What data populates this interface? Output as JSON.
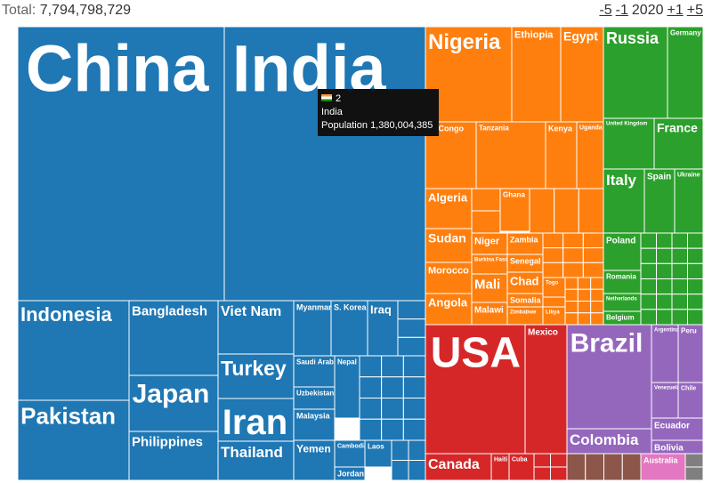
{
  "header": {
    "total_label": "Total:",
    "total": "7,794,798,729",
    "nav": [
      "-5",
      "-1",
      "2020",
      "+1",
      "+5"
    ]
  },
  "tooltip": {
    "rank": "2",
    "name": "India",
    "field": "Population",
    "value": "1,380,004,385"
  },
  "treemap": {
    "countries": [
      "China",
      "India",
      "Indonesia",
      "Pakistan",
      "Bangladesh",
      "Japan",
      "Philippines",
      "Viet Nam",
      "Turkey",
      "Iran",
      "Thailand",
      "Myanmar",
      "S. Korea",
      "Iraq",
      "Saudi Arabia",
      "Nepal",
      "Uzbekistan",
      "Malaysia",
      "Yemen",
      "Cambodia",
      "Laos",
      "Jordan",
      "Nigeria",
      "Ethiopia",
      "Egypt",
      "R. Congo",
      "Tanzania",
      "Kenya",
      "Uganda",
      "Algeria",
      "Ghana",
      "Sudan",
      "Morocco",
      "Angola",
      "Niger",
      "Burkina Faso",
      "Mali",
      "Malawi",
      "Zambia",
      "Senegal",
      "Chad",
      "Somalia",
      "Zimbabwe",
      "Togo",
      "Libya",
      "Russia",
      "Germany",
      "United Kingdom",
      "France",
      "Italy",
      "Spain",
      "Ukraine",
      "Poland",
      "Romania",
      "Netherlands",
      "Belgium",
      "USA",
      "Mexico",
      "Canada",
      "Haiti",
      "Cuba",
      "Brazil",
      "Colombia",
      "Argentina",
      "Peru",
      "Venezuela",
      "Chile",
      "Ecuador",
      "Bolivia",
      "Australia"
    ]
  }
}
